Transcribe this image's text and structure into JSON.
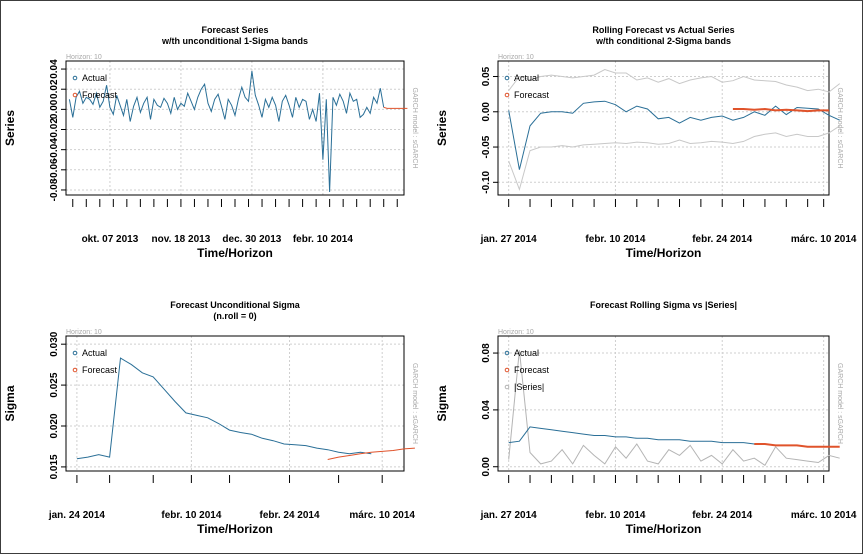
{
  "colors": {
    "actual": "#2a6f97",
    "forecast": "#e0532b",
    "band": "#c8c8c8",
    "abs": "#b4b4b4"
  },
  "chart_data": [
    {
      "type": "line",
      "title_line1": "Forecast Series",
      "title_line2": "w/th unconditional 1-Sigma bands",
      "horizon_label": "Horizon: 10",
      "side_label": "GARCH model : sGARCH",
      "ylabel": "Series",
      "xlabel": "Time/Horizon",
      "ylim": [
        -0.085,
        0.048
      ],
      "yticks": [
        0.04,
        0.02,
        0.0,
        -0.02,
        -0.04,
        -0.06,
        -0.08
      ],
      "ytick_labels": [
        "0.04",
        "0.02",
        "0.00",
        "-0.02",
        "-0.04",
        "-0.06",
        "-0.08"
      ],
      "x_range": [
        0,
        100
      ],
      "x_tick_labels": [
        {
          "x": 13,
          "label": "okt. 07 2013"
        },
        {
          "x": 34,
          "label": "nov. 18 2013"
        },
        {
          "x": 55,
          "label": "dec. 30 2013"
        },
        {
          "x": 76,
          "label": "febr. 10 2014"
        }
      ],
      "x_minor_ticks": [
        2,
        6,
        10,
        14,
        18,
        22,
        26,
        30,
        34,
        38,
        42,
        46,
        50,
        54,
        58,
        62,
        66,
        70,
        74,
        78,
        82,
        86,
        90,
        94,
        98
      ],
      "legend": [
        "Actual",
        "Forecast"
      ],
      "series": [
        {
          "name": "Actual",
          "x_start": 1,
          "values": [
            0.01,
            -0.008,
            0.012,
            0.018,
            0.006,
            0.012,
            0.01,
            0.005,
            0.016,
            0.002,
            0.008,
            0.024,
            0.002,
            -0.005,
            0.014,
            0.004,
            -0.006,
            0.01,
            -0.012,
            0.003,
            0.012,
            -0.003,
            0.006,
            0.012,
            -0.01,
            0.01,
            0.004,
            0.002,
            0.011,
            0.006,
            -0.004,
            0.012,
            0.0,
            0.006,
            0.003,
            0.016,
            0.008,
            0.0,
            0.012,
            0.02,
            0.025,
            0.006,
            -0.002,
            0.01,
            0.015,
            0.003,
            -0.01,
            0.01,
            0.004,
            -0.006,
            0.01,
            0.022,
            0.012,
            0.008,
            0.038,
            0.014,
            0.004,
            -0.008,
            0.01,
            0.002,
            0.012,
            0.004,
            -0.012,
            0.008,
            0.014,
            0.004,
            -0.008,
            0.012,
            0.002,
            0.01,
            0.008,
            -0.01,
            0.0,
            -0.012,
            0.016,
            -0.05,
            0.01,
            -0.082,
            0.012,
            0.004,
            0.015,
            0.008,
            -0.004,
            0.016,
            0.008,
            0.01,
            -0.008,
            -0.005,
            0.002,
            -0.004,
            0.012,
            0.006,
            0.021,
            0.002
          ]
        },
        {
          "name": "Forecast",
          "x_start": 94,
          "values": [
            0.002,
            0.001,
            0.001,
            0.001,
            0.001,
            0.001,
            0.001,
            0.001
          ]
        }
      ]
    },
    {
      "type": "line",
      "title_line1": "Rolling Forecast vs Actual Series",
      "title_line2": "w/th conditional 2-Sigma bands",
      "horizon_label": "Horizon: 10",
      "side_label": "GARCH model : sGARCH",
      "ylabel": "Series",
      "xlabel": "Time/Horizon",
      "ylim": [
        -0.118,
        0.072
      ],
      "yticks": [
        0.05,
        0.0,
        -0.05,
        -0.1
      ],
      "ytick_labels": [
        "0.05",
        "0.00",
        "-0.05",
        "-0.10"
      ],
      "x_range": [
        0,
        31
      ],
      "x_tick_labels": [
        {
          "x": 1,
          "label": "jan. 27 2014"
        },
        {
          "x": 11,
          "label": "febr. 10 2014"
        },
        {
          "x": 21,
          "label": "febr. 24 2014"
        },
        {
          "x": 30.5,
          "label": "márc. 10 2014"
        }
      ],
      "x_minor_ticks": [
        1,
        3,
        5,
        7,
        9,
        11,
        13,
        15,
        17,
        19,
        21,
        23,
        25,
        27,
        29,
        30.5
      ],
      "legend": [
        "Actual",
        "Forecast"
      ],
      "series": [
        {
          "name": "Upper band",
          "x_start": 1,
          "values": [
            0.03,
            0.05,
            0.045,
            0.05,
            0.052,
            0.05,
            0.048,
            0.05,
            0.052,
            0.06,
            0.055,
            0.055,
            0.045,
            0.048,
            0.042,
            0.047,
            0.04,
            0.045,
            0.048,
            0.05,
            0.042,
            0.044,
            0.05,
            0.045,
            0.044,
            0.043,
            0.038,
            0.035,
            0.03,
            0.032,
            0.028,
            0.04
          ]
        },
        {
          "name": "Lower band",
          "x_start": 1,
          "values": [
            -0.07,
            -0.11,
            -0.055,
            -0.05,
            -0.05,
            -0.048,
            -0.05,
            -0.047,
            -0.046,
            -0.045,
            -0.044,
            -0.045,
            -0.043,
            -0.044,
            -0.046,
            -0.045,
            -0.04,
            -0.045,
            -0.044,
            -0.042,
            -0.043,
            -0.045,
            -0.042,
            -0.035,
            -0.032,
            -0.03,
            -0.035,
            -0.032,
            -0.035,
            -0.035,
            -0.03,
            -0.02
          ]
        },
        {
          "name": "Actual",
          "x_start": 1,
          "values": [
            0.002,
            -0.082,
            -0.02,
            -0.002,
            0.0,
            0.0,
            -0.002,
            0.012,
            0.014,
            0.015,
            0.01,
            0.0,
            0.008,
            0.004,
            -0.01,
            -0.008,
            -0.016,
            -0.008,
            -0.012,
            -0.008,
            -0.006,
            -0.012,
            -0.008,
            0.0,
            -0.005,
            0.008,
            -0.004,
            0.006,
            0.005,
            0.004,
            -0.005,
            -0.012
          ]
        },
        {
          "name": "Forecast",
          "x_start": 22,
          "values": [
            0.004,
            0.004,
            0.003,
            0.004,
            0.002,
            0.003,
            0.002,
            0.001,
            0.002,
            0.002
          ]
        }
      ]
    },
    {
      "type": "line",
      "title_line1": "Forecast Unconditional Sigma",
      "title_line2": "(n.roll = 0)",
      "horizon_label": "Horizon: 10",
      "side_label": "GARCH model : sGARCH",
      "ylabel": "Sigma",
      "xlabel": "Time/Horizon",
      "ylim": [
        0.0145,
        0.031
      ],
      "yticks": [
        0.03,
        0.025,
        0.02,
        0.015
      ],
      "ytick_labels": [
        "0.030",
        "0.025",
        "0.020",
        "0.015"
      ],
      "x_range": [
        0,
        31
      ],
      "x_tick_labels": [
        {
          "x": 1,
          "label": "jan. 24 2014"
        },
        {
          "x": 11.5,
          "label": "febr. 10 2014"
        },
        {
          "x": 20.5,
          "label": "febr. 24 2014"
        },
        {
          "x": 29,
          "label": "márc. 10 2014"
        }
      ],
      "x_minor_ticks": [
        1,
        4,
        8,
        11.5,
        15,
        20.5,
        25,
        29
      ],
      "legend": [
        "Actual",
        "Forecast"
      ],
      "series": [
        {
          "name": "Actual",
          "x_start": 1,
          "values": [
            0.016,
            0.0162,
            0.0165,
            0.0162,
            0.0283,
            0.0275,
            0.0265,
            0.026,
            0.0245,
            0.023,
            0.0216,
            0.0213,
            0.021,
            0.0203,
            0.0195,
            0.0192,
            0.019,
            0.0185,
            0.0182,
            0.0178,
            0.0177,
            0.0176,
            0.0173,
            0.0171,
            0.0168,
            0.0166,
            0.0168,
            0.0166
          ]
        },
        {
          "name": "Forecast",
          "x_start": 24,
          "values": [
            0.0159,
            0.0162,
            0.0164,
            0.0166,
            0.0168,
            0.0169,
            0.017,
            0.0172,
            0.0173
          ]
        }
      ]
    },
    {
      "type": "line",
      "title_line1": "Forecast Rolling Sigma vs |Series|",
      "title_line2": "",
      "horizon_label": "Horizon: 10",
      "side_label": "GARCH model : sGARCH",
      "ylabel": "Sigma",
      "xlabel": "Time/Horizon",
      "ylim": [
        -0.003,
        0.092
      ],
      "yticks": [
        0.08,
        0.04,
        0.0
      ],
      "ytick_labels": [
        "0.08",
        "0.04",
        "0.00"
      ],
      "x_range": [
        0,
        31
      ],
      "x_tick_labels": [
        {
          "x": 1,
          "label": "jan. 27 2014"
        },
        {
          "x": 11,
          "label": "febr. 10 2014"
        },
        {
          "x": 21,
          "label": "febr. 24 2014"
        },
        {
          "x": 30.5,
          "label": "márc. 10 2014"
        }
      ],
      "x_minor_ticks": [
        1,
        3,
        5,
        7,
        9,
        11,
        13,
        15,
        17,
        19,
        21,
        23,
        25,
        27,
        29,
        30.5
      ],
      "legend": [
        "Actual",
        "Forecast",
        "|Series|"
      ],
      "series": [
        {
          "name": "|Series|",
          "x_start": 1,
          "values": [
            0.005,
            0.082,
            0.01,
            0.002,
            0.004,
            0.012,
            0.002,
            0.015,
            0.008,
            0.002,
            0.014,
            0.006,
            0.016,
            0.004,
            0.002,
            0.012,
            0.008,
            0.015,
            0.004,
            0.008,
            0.002,
            0.012,
            0.004,
            0.006,
            0.001,
            0.014,
            0.006,
            0.005,
            0.004,
            0.003,
            0.008,
            0.006
          ]
        },
        {
          "name": "Actual",
          "x_start": 1,
          "values": [
            0.017,
            0.018,
            0.028,
            0.027,
            0.026,
            0.025,
            0.024,
            0.023,
            0.022,
            0.022,
            0.021,
            0.021,
            0.02,
            0.02,
            0.019,
            0.019,
            0.019,
            0.018,
            0.018,
            0.018,
            0.017,
            0.017,
            0.017,
            0.016,
            0.016
          ]
        },
        {
          "name": "Forecast",
          "x_start": 24,
          "values": [
            0.016,
            0.016,
            0.015,
            0.015,
            0.015,
            0.014,
            0.014,
            0.014,
            0.014
          ]
        }
      ]
    }
  ]
}
